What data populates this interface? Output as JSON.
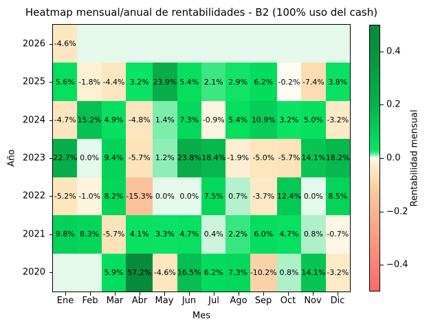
{
  "chart_data": {
    "type": "heatmap",
    "title": "Heatmap mensual/anual de rentabilidades - B2 (100% uso del cash)",
    "xlabel": "Mes",
    "ylabel": "Año",
    "columns": [
      "Ene",
      "Feb",
      "Mar",
      "Abr",
      "May",
      "Jun",
      "Jul",
      "Ago",
      "Sep",
      "Oct",
      "Nov",
      "Dic"
    ],
    "rows": [
      "2026",
      "2025",
      "2024",
      "2023",
      "2022",
      "2021",
      "2020"
    ],
    "values_pct": [
      [
        -4.6,
        null,
        null,
        null,
        null,
        null,
        null,
        null,
        null,
        null,
        null,
        null
      ],
      [
        5.6,
        -1.8,
        -4.4,
        3.2,
        23.9,
        5.4,
        2.1,
        2.9,
        6.2,
        -0.2,
        -7.4,
        3.8
      ],
      [
        -4.7,
        15.2,
        4.9,
        -4.8,
        1.4,
        7.3,
        -0.9,
        5.4,
        10.9,
        3.2,
        5.0,
        -3.2
      ],
      [
        22.7,
        0.0,
        9.4,
        -5.7,
        1.2,
        23.8,
        18.4,
        -1.9,
        -5.0,
        -5.7,
        14.1,
        18.2
      ],
      [
        -5.2,
        -1.0,
        8.2,
        -15.3,
        0.0,
        0.0,
        7.5,
        0.7,
        -3.7,
        12.4,
        0.0,
        8.5
      ],
      [
        9.8,
        8.3,
        -5.7,
        4.1,
        3.3,
        4.7,
        0.4,
        2.2,
        6.0,
        4.7,
        0.8,
        -0.7
      ],
      [
        null,
        null,
        5.9,
        57.2,
        -4.6,
        16.5,
        6.2,
        7.3,
        -10.2,
        0.8,
        14.1,
        -3.2
      ]
    ],
    "annotation_suffix": "%",
    "grid": "off",
    "colorbar": {
      "label": "Rentabilidad mensual",
      "vmin": -0.5,
      "vmax": 0.5,
      "ticks": [
        {
          "value": 0.4,
          "label": "0.4"
        },
        {
          "value": 0.2,
          "label": "0.2"
        },
        {
          "value": 0.0,
          "label": "0.0"
        },
        {
          "value": -0.2,
          "label": "−0.2"
        },
        {
          "value": -0.4,
          "label": "−0.4"
        }
      ]
    },
    "colormap": {
      "null_color": "#e4f8eb",
      "zero_crossing_color": "#ffffff",
      "positive_stops": [
        [
          0.0,
          "#e4f8eb"
        ],
        [
          0.004,
          "#cdf4dd"
        ],
        [
          0.008,
          "#aef0c8"
        ],
        [
          0.012,
          "#8feeb5"
        ],
        [
          0.016,
          "#6cea9f"
        ],
        [
          0.021,
          "#3ce682"
        ],
        [
          0.03,
          "#0ce364"
        ],
        [
          0.06,
          "#04dd5d"
        ],
        [
          0.1,
          "#04d058"
        ],
        [
          0.15,
          "#07c252"
        ],
        [
          0.2,
          "#06b34b"
        ],
        [
          0.26,
          "#09a948"
        ],
        [
          0.35,
          "#089841"
        ],
        [
          0.5,
          "#078a3c"
        ]
      ],
      "negative_stops": [
        [
          -0.001,
          "#fefdf6"
        ],
        [
          -0.01,
          "#fdf4dd"
        ],
        [
          -0.02,
          "#fdefd1"
        ],
        [
          -0.035,
          "#fdeac6"
        ],
        [
          -0.055,
          "#fde4bb"
        ],
        [
          -0.08,
          "#fcdbb1"
        ],
        [
          -0.11,
          "#fbcfa4"
        ],
        [
          -0.16,
          "#fabf98"
        ],
        [
          -0.25,
          "#f9a889"
        ],
        [
          -0.35,
          "#f98f7c"
        ],
        [
          -0.5,
          "#f96a6a"
        ]
      ]
    }
  }
}
